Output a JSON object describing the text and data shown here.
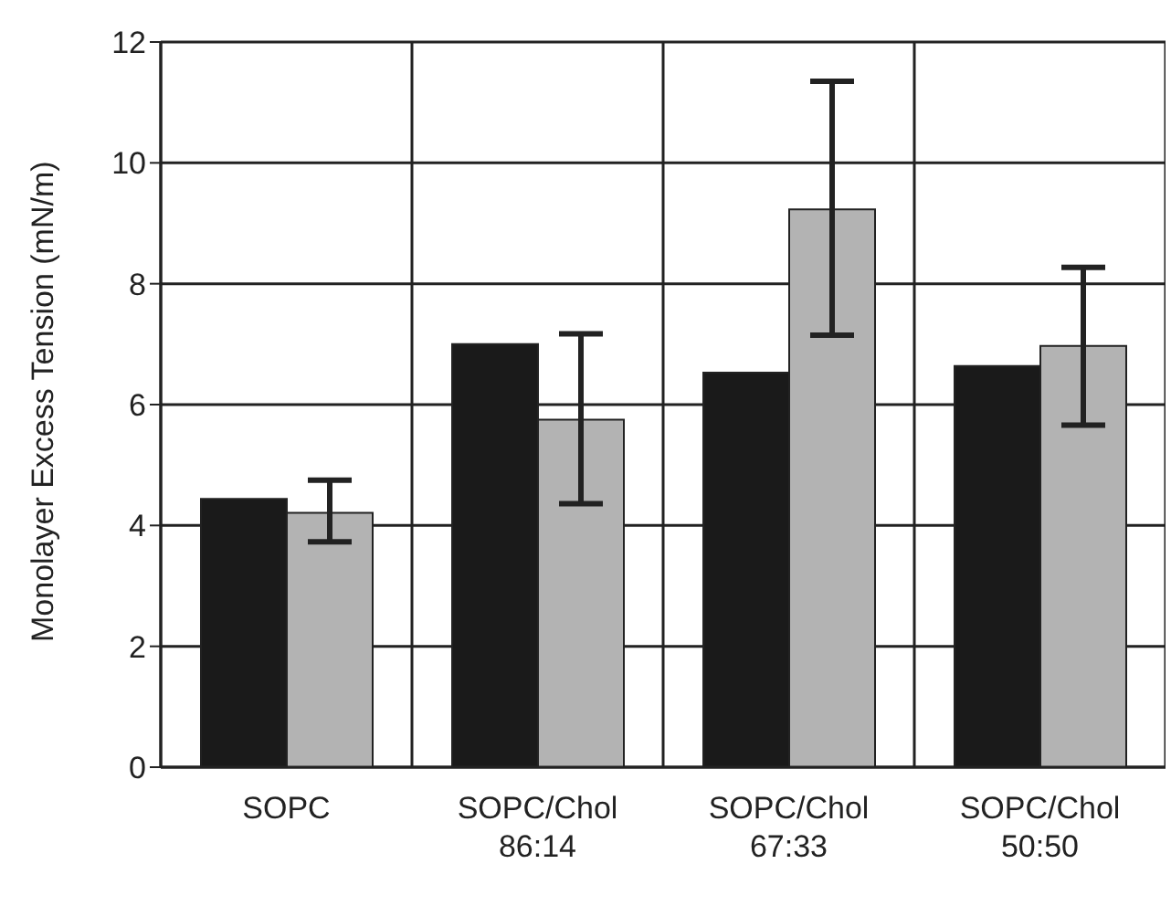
{
  "chart_data": {
    "type": "bar",
    "ylabel": "Monolayer Excess Tension (mN/m)",
    "categories": [
      "SOPC",
      "SOPC/Chol 86:14",
      "SOPC/Chol 67:33",
      "SOPC/Chol 50:50"
    ],
    "series": [
      {
        "color": "#1a1a1a",
        "values": [
          4.44,
          7.0,
          6.53,
          6.64
        ]
      },
      {
        "color": "#b3b3b3",
        "values": [
          4.21,
          5.75,
          9.23,
          6.97
        ],
        "errors": [
          [
            3.73,
            4.75
          ],
          [
            4.36,
            7.17
          ],
          [
            7.15,
            11.35
          ],
          [
            5.66,
            8.27
          ]
        ]
      }
    ],
    "ylim": [
      0,
      12
    ],
    "yticks": [
      0,
      2,
      4,
      6,
      8,
      10,
      12
    ],
    "grid": true,
    "legend": false
  }
}
